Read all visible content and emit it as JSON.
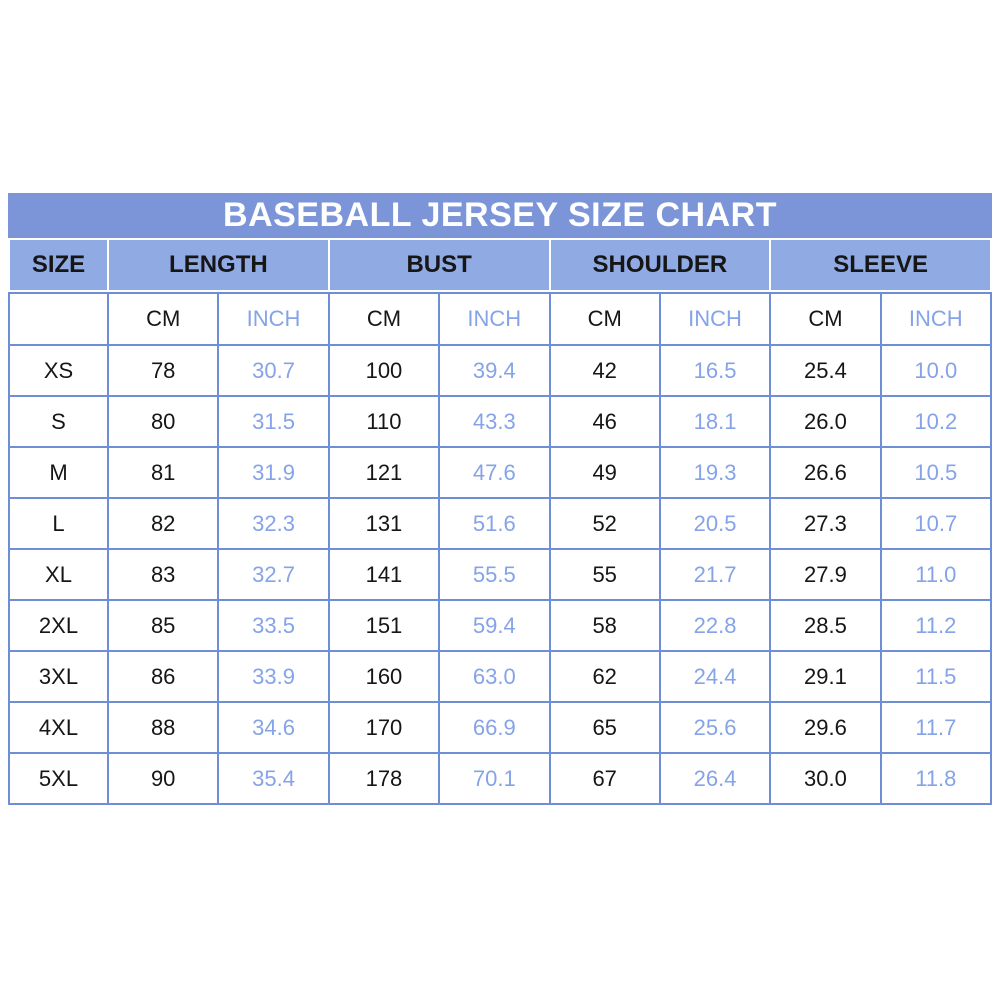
{
  "title": "BASEBALL JERSEY SIZE CHART",
  "colors": {
    "title_bg": "#7b95d8",
    "header_bg": "#90aae4",
    "grid_line": "#6f8ed8",
    "cell_bg": "#ffffff",
    "title_text": "#ffffff",
    "cm_text": "#161616",
    "inch_text": "#85a3e8"
  },
  "header": {
    "size": "SIZE",
    "length": "LENGTH",
    "bust": "BUST",
    "shoulder": "SHOULDER",
    "sleeve": "SLEEVE"
  },
  "units": {
    "cm": "CM",
    "inch": "INCH"
  },
  "chart_data": {
    "type": "table",
    "title": "BASEBALL JERSEY SIZE CHART",
    "column_groups": [
      "SIZE",
      "LENGTH",
      "BUST",
      "SHOULDER",
      "SLEEVE"
    ],
    "sub_columns": [
      "CM",
      "INCH"
    ],
    "rows": [
      {
        "size": "XS",
        "length_cm": "78",
        "length_inch": "30.7",
        "bust_cm": "100",
        "bust_inch": "39.4",
        "shoulder_cm": "42",
        "shoulder_inch": "16.5",
        "sleeve_cm": "25.4",
        "sleeve_inch": "10.0"
      },
      {
        "size": "S",
        "length_cm": "80",
        "length_inch": "31.5",
        "bust_cm": "110",
        "bust_inch": "43.3",
        "shoulder_cm": "46",
        "shoulder_inch": "18.1",
        "sleeve_cm": "26.0",
        "sleeve_inch": "10.2"
      },
      {
        "size": "M",
        "length_cm": "81",
        "length_inch": "31.9",
        "bust_cm": "121",
        "bust_inch": "47.6",
        "shoulder_cm": "49",
        "shoulder_inch": "19.3",
        "sleeve_cm": "26.6",
        "sleeve_inch": "10.5"
      },
      {
        "size": "L",
        "length_cm": "82",
        "length_inch": "32.3",
        "bust_cm": "131",
        "bust_inch": "51.6",
        "shoulder_cm": "52",
        "shoulder_inch": "20.5",
        "sleeve_cm": "27.3",
        "sleeve_inch": "10.7"
      },
      {
        "size": "XL",
        "length_cm": "83",
        "length_inch": "32.7",
        "bust_cm": "141",
        "bust_inch": "55.5",
        "shoulder_cm": "55",
        "shoulder_inch": "21.7",
        "sleeve_cm": "27.9",
        "sleeve_inch": "11.0"
      },
      {
        "size": "2XL",
        "length_cm": "85",
        "length_inch": "33.5",
        "bust_cm": "151",
        "bust_inch": "59.4",
        "shoulder_cm": "58",
        "shoulder_inch": "22.8",
        "sleeve_cm": "28.5",
        "sleeve_inch": "11.2"
      },
      {
        "size": "3XL",
        "length_cm": "86",
        "length_inch": "33.9",
        "bust_cm": "160",
        "bust_inch": "63.0",
        "shoulder_cm": "62",
        "shoulder_inch": "24.4",
        "sleeve_cm": "29.1",
        "sleeve_inch": "11.5"
      },
      {
        "size": "4XL",
        "length_cm": "88",
        "length_inch": "34.6",
        "bust_cm": "170",
        "bust_inch": "66.9",
        "shoulder_cm": "65",
        "shoulder_inch": "25.6",
        "sleeve_cm": "29.6",
        "sleeve_inch": "11.7"
      },
      {
        "size": "5XL",
        "length_cm": "90",
        "length_inch": "35.4",
        "bust_cm": "178",
        "bust_inch": "70.1",
        "shoulder_cm": "67",
        "shoulder_inch": "26.4",
        "sleeve_cm": "30.0",
        "sleeve_inch": "11.8"
      }
    ]
  }
}
